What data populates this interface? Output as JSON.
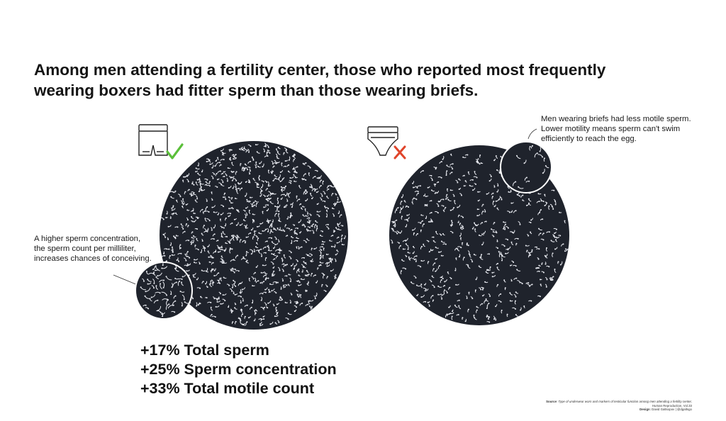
{
  "headline": {
    "line1": "Among men attending a fertility center, those who reported most frequently",
    "line2": "wearing boxers had fitter sperm than those wearing briefs."
  },
  "left_panel": {
    "underwear_icon": "boxers-icon",
    "mark_icon": "checkmark-icon",
    "mark_color": "#5bbf3a",
    "note": {
      "line1": "A higher sperm concentration,",
      "line2": "the sperm count per milliliter,",
      "line3": "increases chances of conceiving."
    },
    "stats": [
      "+17% Total sperm",
      "+25% Sperm concentration",
      "+33% Total motile count"
    ]
  },
  "right_panel": {
    "underwear_icon": "briefs-icon",
    "mark_icon": "cross-icon",
    "mark_color": "#e0442a",
    "note": {
      "line1": "Men wearing briefs had less motile sperm.",
      "line2": "Lower motility means sperm can't swim",
      "line3": "efficiently to reach the egg."
    }
  },
  "source": {
    "label": "Source",
    "line1": ": Type of underwear worn and markers of testicular function among men attending a fertility center,",
    "line2": "Human Reproduction, Vol.33",
    "design_label": "Design",
    "design_value": ": David Galtsopov | @dgaltsgo"
  },
  "colors": {
    "circle_fill": "#1f232c",
    "sperm": "#e8eaf0",
    "text": "#141414"
  }
}
